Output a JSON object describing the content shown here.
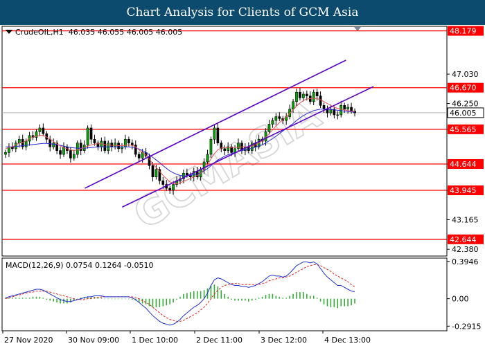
{
  "header": {
    "title": "Chart Analysis for Clients of GCM Asia"
  },
  "watermark": "GCMASIA",
  "symbol_info": {
    "symbol": "CrudeOIL,H1",
    "open": "46.035",
    "high": "46.055",
    "low": "46.005",
    "close": "46.005"
  },
  "macd_info": {
    "label": "MACD(12,26,9)",
    "main": "0.0754",
    "signal": "0.1264",
    "histogram": "-0.0510"
  },
  "colors": {
    "header_bg": "#0c4a6e",
    "level_line": "#ff0000",
    "level_tag": "#ff0000",
    "channel": "#5b00c8",
    "ma_fast": "#e25555",
    "ma_slow": "#2b2bd9",
    "candle_bull": "#00aa00",
    "candle_bear": "#000000",
    "macd_line": "#2030d0",
    "macd_signal": "#e02020",
    "macd_hist": "#33aa33"
  },
  "chart_data": [
    {
      "type": "candlestick",
      "instrument": "CrudeOIL",
      "timeframe": "H1",
      "y_axis_ticks": [
        "47.030",
        "46.250",
        "45.565",
        "44.644",
        "43.945",
        "43.165",
        "42.380"
      ],
      "ylim": [
        42.2,
        48.3
      ],
      "current_price": "46.005",
      "price_levels": [
        "48.179",
        "46.670",
        "45.565",
        "44.644",
        "43.945",
        "42.644"
      ],
      "x_tick_labels": [
        "27 Nov 2020",
        "30 Nov 09:00",
        "1 Dec 10:00",
        "2 Dec 11:00",
        "3 Dec 12:00",
        "4 Dec 13:00"
      ],
      "channel": {
        "upper": {
          "start": [
            0.186,
            44.0
          ],
          "end": [
            0.773,
            47.4
          ]
        },
        "lower": {
          "start": [
            0.27,
            43.5
          ],
          "end": [
            0.835,
            46.7
          ]
        }
      },
      "closes": [
        44.95,
        45.1,
        45.05,
        45.2,
        45.3,
        45.1,
        45.25,
        45.4,
        45.35,
        45.5,
        45.6,
        45.45,
        45.3,
        45.1,
        45.2,
        45.0,
        44.9,
        45.1,
        45.0,
        44.8,
        44.9,
        45.2,
        45.0,
        45.15,
        45.6,
        45.3,
        45.2,
        45.1,
        45.25,
        45.0,
        45.2,
        45.1,
        45.2,
        45.05,
        45.1,
        45.3,
        45.2,
        45.15,
        44.9,
        44.8,
        44.95,
        44.85,
        44.6,
        44.3,
        44.5,
        44.2,
        44.1,
        44.0,
        43.95,
        44.1,
        44.2,
        44.25,
        44.4,
        44.35,
        44.3,
        44.45,
        44.3,
        44.5,
        44.7,
        44.9,
        45.3,
        45.6,
        45.2,
        45.05,
        45.0,
        45.1,
        44.95,
        45.05,
        45.2,
        45.0,
        45.1,
        45.0,
        45.2,
        45.1,
        45.3,
        45.25,
        45.5,
        45.7,
        45.8,
        45.9,
        45.85,
        45.8,
        45.9,
        46.1,
        46.3,
        46.55,
        46.4,
        46.5,
        46.45,
        46.3,
        46.55,
        46.45,
        46.2,
        46.1,
        46.0,
        46.1,
        45.95,
        45.95,
        46.2,
        46.1,
        46.15,
        46.05,
        46.0
      ],
      "ma_fast": [
        45.05,
        45.08,
        45.1,
        45.15,
        45.2,
        45.22,
        45.26,
        45.32,
        45.36,
        45.38,
        45.4,
        45.4,
        45.36,
        45.3,
        45.24,
        45.18,
        45.12,
        45.08,
        45.05,
        45.02,
        45.0,
        45.02,
        45.05,
        45.08,
        45.12,
        45.15,
        45.17,
        45.18,
        45.18,
        45.16,
        45.15,
        45.14,
        45.14,
        45.13,
        45.13,
        45.14,
        45.15,
        45.14,
        45.1,
        45.02,
        44.95,
        44.88,
        44.78,
        44.65,
        44.55,
        44.45,
        44.34,
        44.25,
        44.17,
        44.13,
        44.12,
        44.14,
        44.18,
        44.22,
        44.26,
        44.3,
        44.34,
        44.4,
        44.5,
        44.62,
        44.78,
        44.92,
        45.02,
        45.07,
        45.08,
        45.08,
        45.08,
        45.08,
        45.09,
        45.1,
        45.1,
        45.1,
        45.12,
        45.15,
        45.2,
        45.26,
        45.35,
        45.45,
        45.55,
        45.65,
        45.74,
        45.82,
        45.9,
        45.98,
        46.08,
        46.18,
        46.26,
        46.33,
        46.37,
        46.38,
        46.39,
        46.38,
        46.35,
        46.3,
        46.25,
        46.2,
        46.15,
        46.12,
        46.1,
        46.08,
        46.06,
        46.05,
        46.04
      ],
      "ma_slow": [
        45.1,
        45.1,
        45.1,
        45.11,
        45.12,
        45.13,
        45.14,
        45.15,
        45.16,
        45.17,
        45.18,
        45.19,
        45.19,
        45.18,
        45.17,
        45.16,
        45.14,
        45.12,
        45.1,
        45.08,
        45.07,
        45.06,
        45.06,
        45.06,
        45.07,
        45.08,
        45.09,
        45.1,
        45.1,
        45.1,
        45.1,
        45.1,
        45.1,
        45.1,
        45.1,
        45.1,
        45.1,
        45.09,
        45.07,
        45.04,
        45.0,
        44.95,
        44.89,
        44.82,
        44.75,
        44.68,
        44.6,
        44.53,
        44.46,
        44.41,
        44.37,
        44.34,
        44.33,
        44.33,
        44.34,
        44.36,
        44.38,
        44.41,
        44.46,
        44.52,
        44.6,
        44.68,
        44.75,
        44.8,
        44.85,
        44.89,
        44.92,
        44.95,
        44.98,
        45.0,
        45.02,
        45.04,
        45.06,
        45.09,
        45.12,
        45.16,
        45.2,
        45.26,
        45.32,
        45.38,
        45.45,
        45.52,
        45.58,
        45.65,
        45.72,
        45.8,
        45.87,
        45.93,
        45.98,
        46.02,
        46.06,
        46.08,
        46.1,
        46.1,
        46.1,
        46.09,
        46.08,
        46.07,
        46.06,
        46.05,
        46.04,
        46.03,
        46.02
      ]
    },
    {
      "type": "macd",
      "name": "MACD(12,26,9)",
      "y_axis_ticks": [
        "0.3946",
        "0.00",
        "-0.2915"
      ],
      "ylim": [
        -0.34,
        0.43
      ],
      "macd": [
        0.01,
        0.02,
        0.03,
        0.04,
        0.05,
        0.06,
        0.07,
        0.08,
        0.09,
        0.1,
        0.1,
        0.09,
        0.07,
        0.05,
        0.03,
        0.01,
        -0.01,
        -0.02,
        -0.03,
        -0.03,
        -0.02,
        -0.01,
        0.0,
        0.01,
        0.02,
        0.02,
        0.03,
        0.03,
        0.03,
        0.02,
        0.02,
        0.02,
        0.02,
        0.02,
        0.02,
        0.02,
        0.02,
        0.01,
        -0.01,
        -0.04,
        -0.07,
        -0.1,
        -0.14,
        -0.18,
        -0.21,
        -0.24,
        -0.26,
        -0.27,
        -0.28,
        -0.27,
        -0.25,
        -0.22,
        -0.18,
        -0.15,
        -0.12,
        -0.09,
        -0.07,
        -0.04,
        0.0,
        0.06,
        0.14,
        0.2,
        0.22,
        0.21,
        0.19,
        0.17,
        0.15,
        0.14,
        0.14,
        0.13,
        0.13,
        0.12,
        0.13,
        0.14,
        0.16,
        0.18,
        0.21,
        0.24,
        0.25,
        0.24,
        0.24,
        0.23,
        0.24,
        0.27,
        0.31,
        0.35,
        0.37,
        0.39,
        0.39,
        0.38,
        0.39,
        0.37,
        0.32,
        0.27,
        0.23,
        0.2,
        0.17,
        0.14,
        0.14,
        0.12,
        0.1,
        0.08,
        0.075
      ],
      "signal": [
        0.0,
        0.01,
        0.02,
        0.03,
        0.04,
        0.05,
        0.06,
        0.07,
        0.07,
        0.08,
        0.08,
        0.08,
        0.08,
        0.07,
        0.06,
        0.05,
        0.04,
        0.03,
        0.02,
        0.01,
        0.0,
        -0.01,
        -0.01,
        -0.01,
        0.0,
        0.0,
        0.01,
        0.01,
        0.02,
        0.02,
        0.02,
        0.02,
        0.02,
        0.02,
        0.02,
        0.02,
        0.02,
        0.02,
        0.01,
        0.0,
        -0.02,
        -0.04,
        -0.06,
        -0.09,
        -0.12,
        -0.15,
        -0.18,
        -0.2,
        -0.22,
        -0.23,
        -0.24,
        -0.24,
        -0.23,
        -0.21,
        -0.19,
        -0.17,
        -0.15,
        -0.12,
        -0.09,
        -0.05,
        0.0,
        0.05,
        0.09,
        0.12,
        0.14,
        0.15,
        0.16,
        0.16,
        0.16,
        0.15,
        0.15,
        0.15,
        0.15,
        0.15,
        0.15,
        0.16,
        0.17,
        0.19,
        0.2,
        0.21,
        0.22,
        0.22,
        0.23,
        0.24,
        0.26,
        0.28,
        0.3,
        0.32,
        0.34,
        0.35,
        0.36,
        0.36,
        0.35,
        0.33,
        0.31,
        0.29,
        0.26,
        0.24,
        0.22,
        0.2,
        0.18,
        0.15,
        0.126
      ]
    }
  ]
}
